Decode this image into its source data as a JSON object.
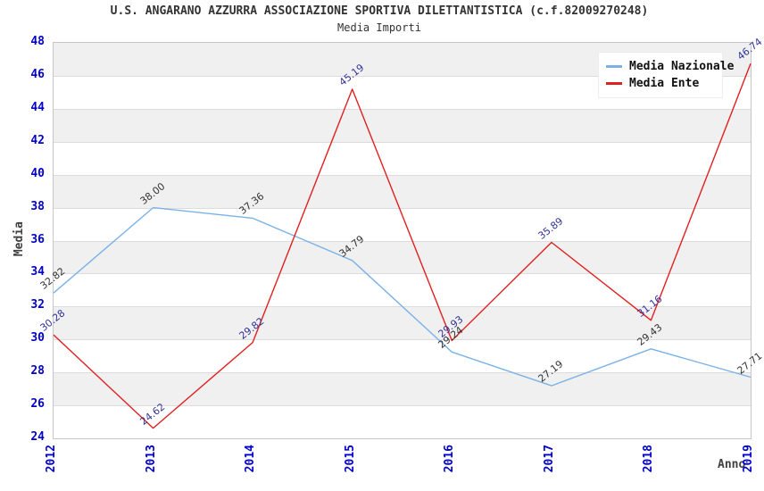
{
  "title": "U.S. ANGARANO AZZURRA ASSOCIAZIONE SPORTIVA DILETTANTISTICA (c.f.82009270248)",
  "subtitle": "Media Importi",
  "chart_data": {
    "type": "line",
    "categories": [
      "2012",
      "2013",
      "2014",
      "2015",
      "2016",
      "2017",
      "2018",
      "2019"
    ],
    "series": [
      {
        "name": "Media Nazionale",
        "color": "#7ab2e8",
        "label_color": "#333333",
        "values": [
          32.82,
          38.0,
          37.36,
          34.79,
          29.24,
          27.19,
          29.43,
          27.71
        ]
      },
      {
        "name": "Media Ente",
        "color": "#e02020",
        "label_color": "#333399",
        "values": [
          30.28,
          24.62,
          29.82,
          45.19,
          29.93,
          35.89,
          31.16,
          46.74
        ]
      }
    ],
    "xlabel": "Anno",
    "ylabel": "Media",
    "ylim": [
      24,
      48
    ],
    "ytick_step": 2,
    "grid": "horizontal-bands",
    "band_colors": [
      "#f0f0f0",
      "#ffffff"
    ],
    "gridline_color": "#dcdcdc",
    "tick_label_color": "#0000cc",
    "legend_position": "top-right",
    "value_label_decimals": 2
  }
}
